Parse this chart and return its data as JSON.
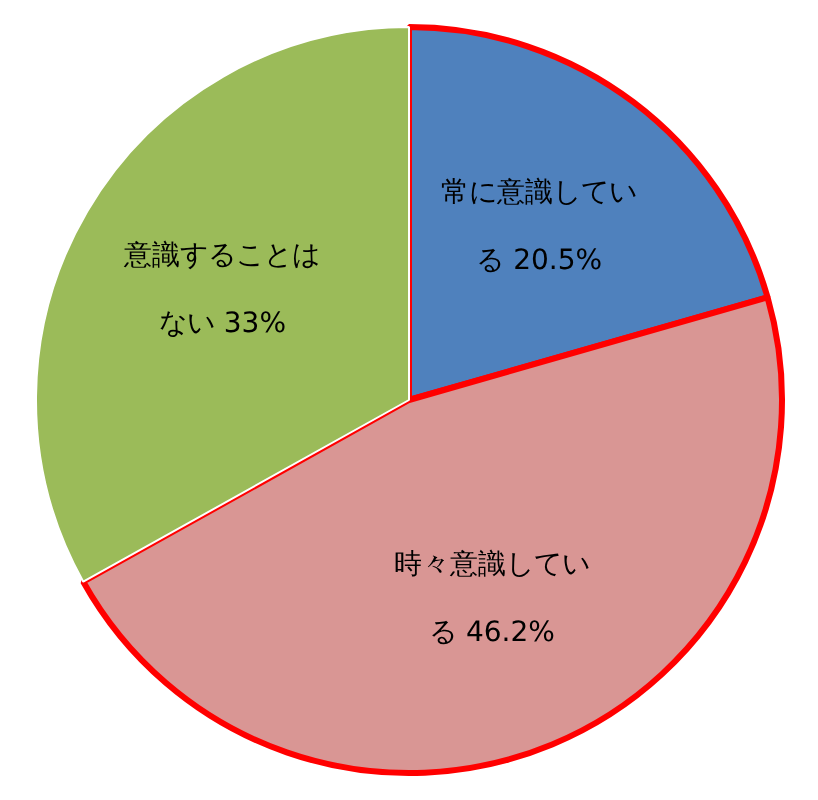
{
  "chart_data": {
    "type": "pie",
    "categories": [
      "常に意識している",
      "時々意識している",
      "意識することはない"
    ],
    "values": [
      20.5,
      46.2,
      33
    ],
    "colors": [
      "#4f81bd",
      "#d99694",
      "#9bbb59"
    ],
    "value_labels": [
      "20.5%",
      "46.2%",
      "33%"
    ],
    "legend": false
  }
}
